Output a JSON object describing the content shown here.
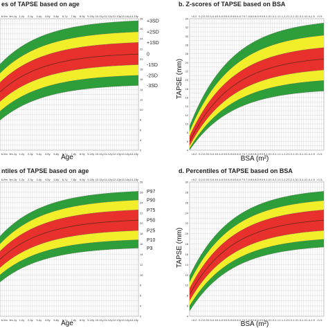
{
  "colors": {
    "outer": "#2e9e3a",
    "middle": "#f2ef2a",
    "inner": "#e8312c",
    "grid": "#c9c9c9",
    "median": "#6e2a1e"
  },
  "chart_data": [
    {
      "panel": "a",
      "type": "area",
      "title": "es of TAPSE based on age",
      "xlabel": "Age",
      "ylabel": "",
      "xticks": [
        "6-9m",
        "9m-1y",
        "1-2y",
        "2-3y",
        "3-4y",
        "4-5y",
        "5-6y",
        "6-7y",
        "7-8y",
        "8-9y",
        "9-10y",
        "10-11y",
        "11-12y",
        "12-13y",
        "13-14y",
        "14-15y"
      ],
      "xlim": [
        0,
        16
      ],
      "ylim": [
        2,
        28
      ],
      "yticks": [
        2,
        4,
        6,
        8,
        10,
        12,
        14,
        16,
        18,
        20,
        22,
        24,
        26,
        28
      ],
      "curve_labels": [
        "+3SD",
        "+2SD",
        "+1SD",
        "0",
        "-1SD",
        "-2SD",
        "-3SD"
      ],
      "series": [
        {
          "name": "+3SD",
          "values": [
            19.0,
            27.6
          ]
        },
        {
          "name": "+2SD",
          "values": [
            17.2,
            25.4
          ]
        },
        {
          "name": "+1SD",
          "values": [
            15.4,
            23.3
          ]
        },
        {
          "name": "0",
          "values": [
            13.5,
            21.0
          ]
        },
        {
          "name": "-1SD",
          "values": [
            11.6,
            18.9
          ]
        },
        {
          "name": "-2SD",
          "values": [
            9.7,
            16.8
          ]
        },
        {
          "name": "-3SD",
          "values": [
            7.9,
            14.8
          ]
        }
      ]
    },
    {
      "panel": "b",
      "type": "area",
      "title": "b. Z-scores of TAPSE based on BSA",
      "xlabel": "BSA (m²)",
      "ylabel": "TAPSE (mm)",
      "xticks": [
        "<0.2",
        "0.2-0.3",
        "0.3-0.4",
        "0.4-0.5",
        "0.5-0.6",
        "0.6-0.7",
        "0.7-0.8",
        "0.8-0.9",
        "0.9-1.0",
        "1.0-1.1",
        "1.1-1.2",
        "1.2-1.3",
        "1.3-1.4",
        "1.4-1.5",
        ">1.5"
      ],
      "xlim": [
        0,
        15
      ],
      "ylim": [
        4,
        34
      ],
      "yticks": [
        4,
        6,
        8,
        10,
        12,
        14,
        16,
        18,
        20,
        22,
        24,
        26,
        28,
        30,
        32,
        34
      ],
      "series": [
        {
          "name": "+3SD",
          "values": [
            9.5,
            33.0
          ]
        },
        {
          "name": "+2SD",
          "values": [
            8.3,
            30.2
          ]
        },
        {
          "name": "+1SD",
          "values": [
            7.2,
            27.4
          ]
        },
        {
          "name": "0",
          "values": [
            6.0,
            24.8
          ]
        },
        {
          "name": "-1SD",
          "values": [
            5.0,
            22.3
          ]
        },
        {
          "name": "-2SD",
          "values": [
            4.4,
            19.9
          ]
        },
        {
          "name": "-3SD",
          "values": [
            4.0,
            17.5
          ]
        }
      ]
    },
    {
      "panel": "c",
      "type": "area",
      "title": "ntiles of TAPSE based on age",
      "xlabel": "Age",
      "ylabel": "",
      "xticks": [
        "6-9m",
        "9m-1y",
        "1-2y",
        "2-3y",
        "3-4y",
        "4-5y",
        "5-6y",
        "6-7y",
        "7-8y",
        "8-9y",
        "9-10y",
        "10-11y",
        "11-12y",
        "12-13y",
        "13-14y",
        "14-15y"
      ],
      "xlim": [
        0,
        16
      ],
      "ylim": [
        2,
        28
      ],
      "yticks": [
        2,
        4,
        6,
        8,
        10,
        12,
        14,
        16,
        18,
        20,
        22,
        24,
        26,
        28
      ],
      "curve_labels": [
        "P97",
        "P90",
        "P75",
        "P50",
        "P25",
        "P10",
        "P3"
      ],
      "series": [
        {
          "name": "P97",
          "values": [
            17.5,
            26.2
          ]
        },
        {
          "name": "P90",
          "values": [
            16.0,
            24.5
          ]
        },
        {
          "name": "P75",
          "values": [
            14.6,
            22.6
          ]
        },
        {
          "name": "P50",
          "values": [
            13.0,
            20.6
          ]
        },
        {
          "name": "P25",
          "values": [
            11.4,
            18.6
          ]
        },
        {
          "name": "P10",
          "values": [
            10.0,
            16.8
          ]
        },
        {
          "name": "P3",
          "values": [
            8.6,
            15.2
          ]
        }
      ]
    },
    {
      "panel": "d",
      "type": "area",
      "title": "d. Percentiles of TAPSE based on BSA",
      "xlabel": "BSA (m²)",
      "ylabel": "TAPSE (mm)",
      "xticks": [
        "<0.2",
        "0.2-0.3",
        "0.3-0.4",
        "0.4-0.5",
        "0.5-0.6",
        "0.6-0.7",
        "0.7-0.8",
        "0.8-0.9",
        "0.9-1.0",
        "1.0-1.1",
        "1.1-1.2",
        "1.2-1.3",
        "1.3-1.4",
        "1.4-1.5",
        ">1.5"
      ],
      "xlim": [
        0,
        15
      ],
      "ylim": [
        4,
        30
      ],
      "yticks": [
        4,
        6,
        8,
        10,
        12,
        14,
        16,
        18,
        20,
        22,
        24,
        26,
        28,
        30
      ],
      "series": [
        {
          "name": "P97",
          "values": [
            11.8,
            28.2
          ]
        },
        {
          "name": "P90",
          "values": [
            10.6,
            26.4
          ]
        },
        {
          "name": "P75",
          "values": [
            9.4,
            24.6
          ]
        },
        {
          "name": "P50",
          "values": [
            8.2,
            22.6
          ]
        },
        {
          "name": "P25",
          "values": [
            7.0,
            20.6
          ]
        },
        {
          "name": "P10",
          "values": [
            6.0,
            18.9
          ]
        },
        {
          "name": "P3",
          "values": [
            5.0,
            17.4
          ]
        }
      ]
    }
  ]
}
